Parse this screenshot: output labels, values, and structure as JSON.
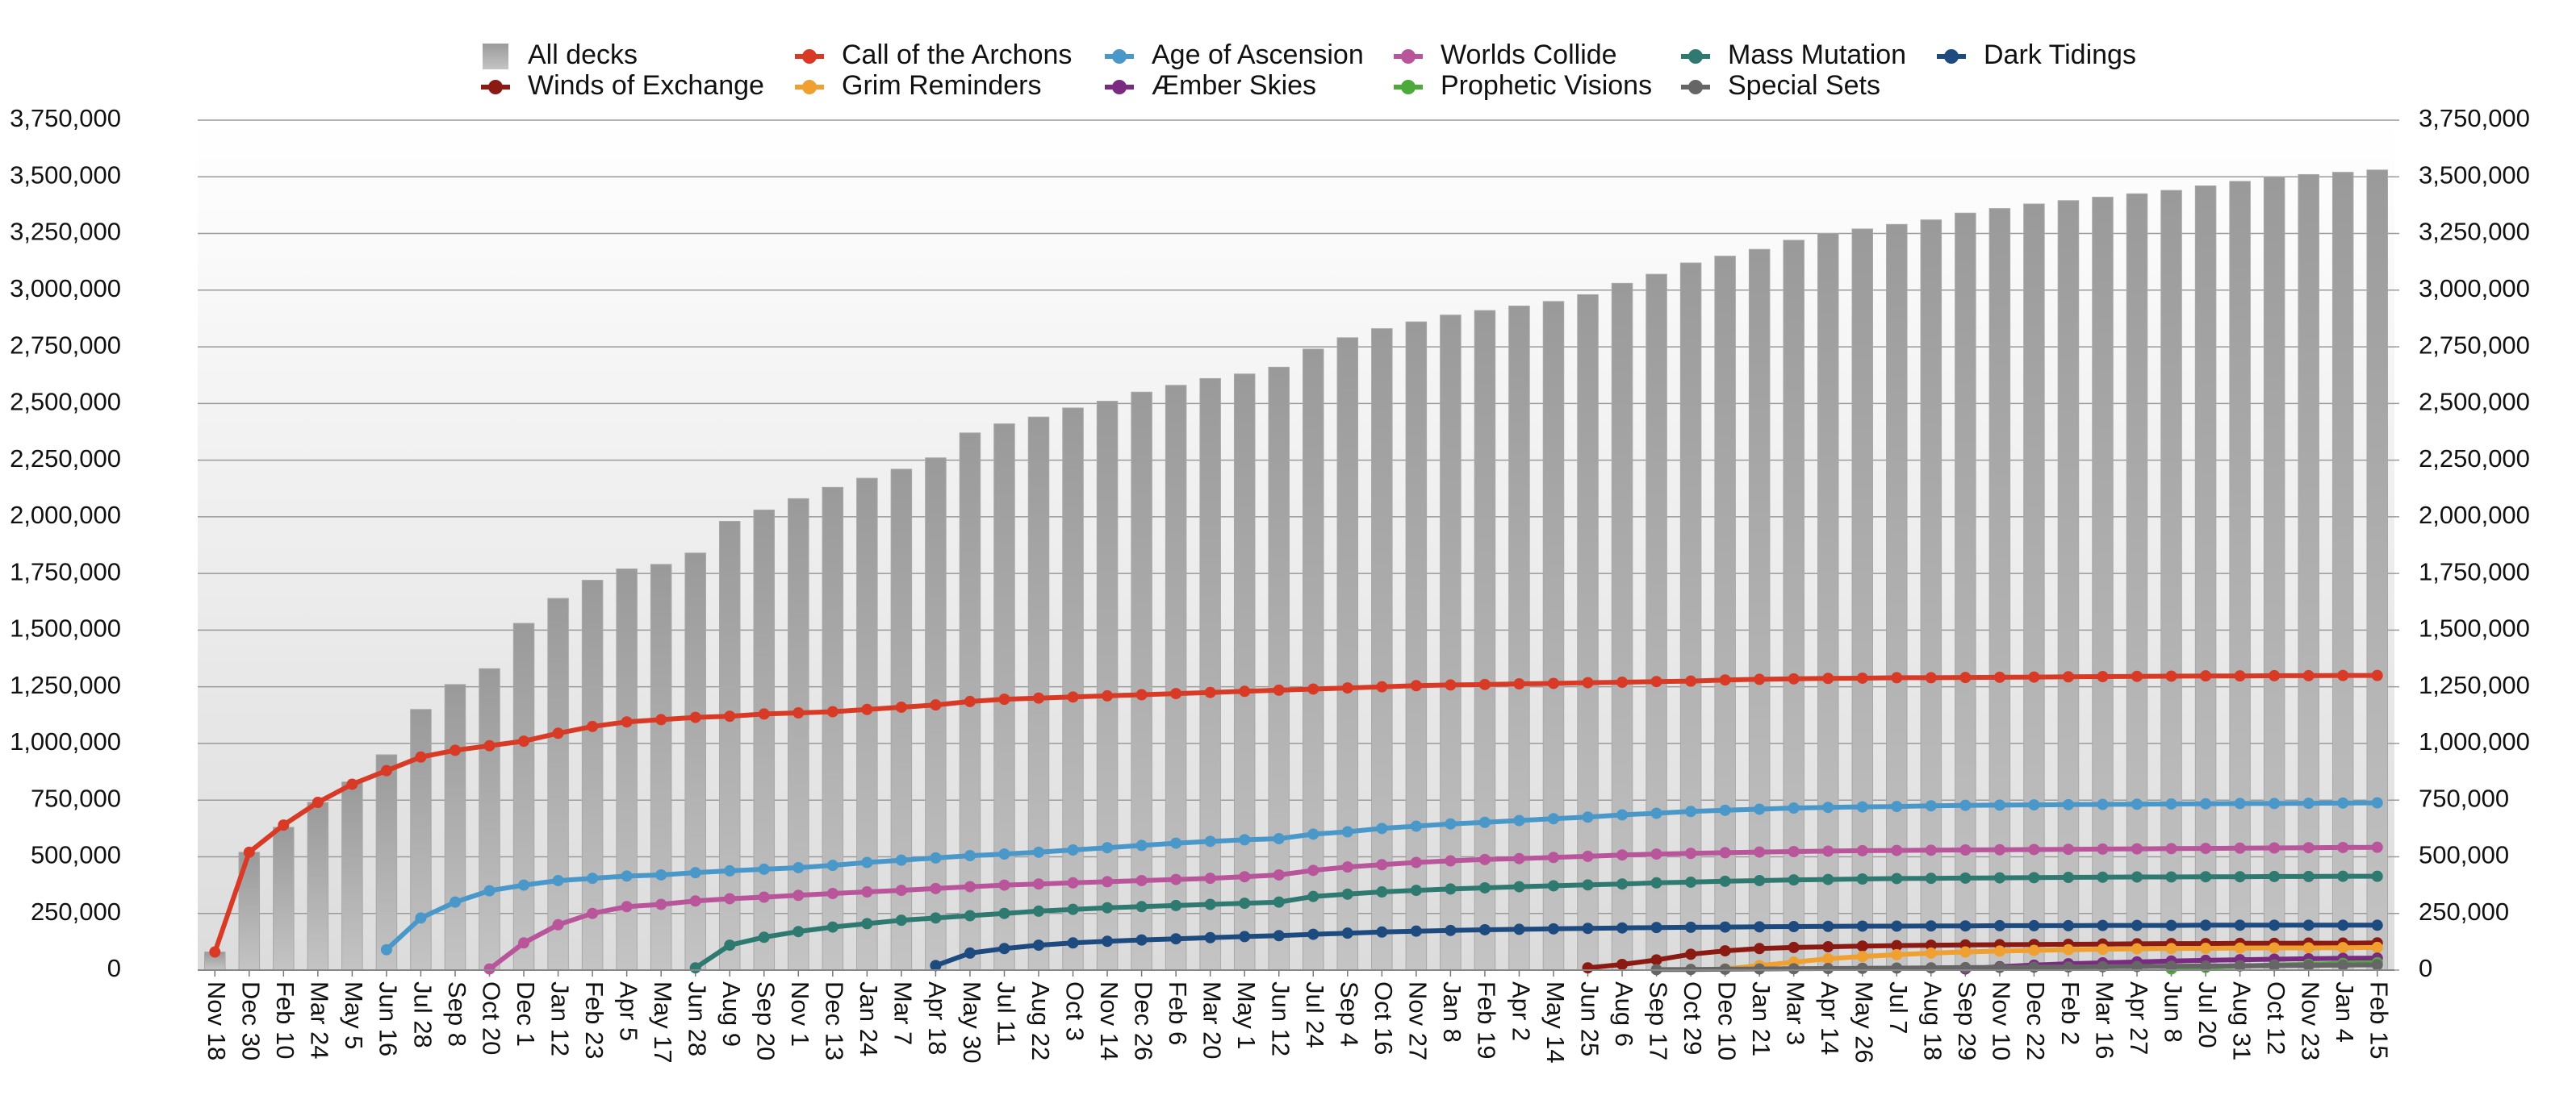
{
  "chart_data": {
    "type": "bar",
    "legend": "top",
    "grid": true,
    "categories": [
      "Nov 18",
      "Dec 30",
      "Feb 10",
      "Mar 24",
      "May 5",
      "Jun 16",
      "Jul 28",
      "Sep 8",
      "Oct 20",
      "Dec 1",
      "Jan 12",
      "Feb 23",
      "Apr 5",
      "May 17",
      "Jun 28",
      "Aug 9",
      "Sep 20",
      "Nov 1",
      "Dec 13",
      "Jan 24",
      "Mar 7",
      "Apr 18",
      "May 30",
      "Jul 11",
      "Aug 22",
      "Oct 3",
      "Nov 14",
      "Dec 26",
      "Feb 6",
      "Mar 20",
      "May 1",
      "Jun 12",
      "Jul 24",
      "Sep 4",
      "Oct 16",
      "Nov 27",
      "Jan 8",
      "Feb 19",
      "Apr 2",
      "May 14",
      "Jun 25",
      "Aug 6",
      "Sep 17",
      "Oct 29",
      "Dec 10",
      "Jan 21",
      "Mar 3",
      "Apr 14",
      "May 26",
      "Jul 7",
      "Aug 18",
      "Sep 29",
      "Nov 10",
      "Dec 22",
      "Feb 2",
      "Mar 16",
      "Apr 27",
      "Jun 8",
      "Jul 20",
      "Aug 31",
      "Oct 12",
      "Nov 23",
      "Jan 4",
      "Feb 15"
    ],
    "ylim": [
      0,
      3750000
    ],
    "yticks": [
      {
        "value": 0,
        "label": "0"
      },
      {
        "value": 250000,
        "label": "250,000"
      },
      {
        "value": 500000,
        "label": "500,000"
      },
      {
        "value": 750000,
        "label": "750,000"
      },
      {
        "value": 1000000,
        "label": "1,000,000"
      },
      {
        "value": 1250000,
        "label": "1,250,000"
      },
      {
        "value": 1500000,
        "label": "1,500,000"
      },
      {
        "value": 1750000,
        "label": "1,750,000"
      },
      {
        "value": 2000000,
        "label": "2,000,000"
      },
      {
        "value": 2250000,
        "label": "2,250,000"
      },
      {
        "value": 2500000,
        "label": "2,500,000"
      },
      {
        "value": 2750000,
        "label": "2,750,000"
      },
      {
        "value": 3000000,
        "label": "3,000,000"
      },
      {
        "value": 3250000,
        "label": "3,250,000"
      },
      {
        "value": 3500000,
        "label": "3,500,000"
      },
      {
        "value": 3750000,
        "label": "3,750,000"
      }
    ],
    "y2lim": [
      0,
      3750000
    ],
    "y2ticks": [
      {
        "value": 0,
        "label": "0"
      },
      {
        "value": 250000,
        "label": "250,000"
      },
      {
        "value": 500000,
        "label": "500,000"
      },
      {
        "value": 750000,
        "label": "750,000"
      },
      {
        "value": 1000000,
        "label": "1,000,000"
      },
      {
        "value": 1250000,
        "label": "1,250,000"
      },
      {
        "value": 1500000,
        "label": "1,500,000"
      },
      {
        "value": 1750000,
        "label": "1,750,000"
      },
      {
        "value": 2000000,
        "label": "2,000,000"
      },
      {
        "value": 2250000,
        "label": "2,250,000"
      },
      {
        "value": 2500000,
        "label": "2,500,000"
      },
      {
        "value": 2750000,
        "label": "2,750,000"
      },
      {
        "value": 3000000,
        "label": "3,000,000"
      },
      {
        "value": 3250000,
        "label": "3,250,000"
      },
      {
        "value": 3500000,
        "label": "3,500,000"
      },
      {
        "value": 3750000,
        "label": "3,750,000"
      }
    ],
    "series": [
      {
        "name": "All decks",
        "type": "bar",
        "color": "#a8a8a8",
        "values": [
          80000,
          520000,
          630000,
          740000,
          830000,
          950000,
          1150000,
          1260000,
          1330000,
          1530000,
          1640000,
          1720000,
          1770000,
          1790000,
          1840000,
          1980000,
          2030000,
          2080000,
          2130000,
          2170000,
          2210000,
          2260000,
          2370000,
          2410000,
          2440000,
          2480000,
          2510000,
          2550000,
          2580000,
          2610000,
          2630000,
          2660000,
          2740000,
          2790000,
          2830000,
          2860000,
          2890000,
          2910000,
          2930000,
          2950000,
          2980000,
          3030000,
          3070000,
          3120000,
          3150000,
          3180000,
          3220000,
          3250000,
          3270000,
          3290000,
          3310000,
          3340000,
          3360000,
          3380000,
          3395000,
          3410000,
          3425000,
          3440000,
          3460000,
          3480000,
          3500000,
          3510000,
          3520000,
          3530000
        ]
      },
      {
        "name": "Call of the Archons",
        "type": "line",
        "color": "#d93a26",
        "values": [
          80000,
          520000,
          640000,
          740000,
          820000,
          880000,
          940000,
          970000,
          990000,
          1010000,
          1045000,
          1075000,
          1095000,
          1105000,
          1115000,
          1120000,
          1130000,
          1135000,
          1140000,
          1150000,
          1160000,
          1170000,
          1185000,
          1195000,
          1200000,
          1205000,
          1210000,
          1215000,
          1220000,
          1225000,
          1230000,
          1235000,
          1240000,
          1245000,
          1250000,
          1255000,
          1258000,
          1260000,
          1263000,
          1265000,
          1268000,
          1270000,
          1273000,
          1275000,
          1280000,
          1283000,
          1285000,
          1287000,
          1288000,
          1290000,
          1290000,
          1291000,
          1292000,
          1293000,
          1294000,
          1295000,
          1296000,
          1297000,
          1298000,
          1298000,
          1299000,
          1299000,
          1300000,
          1300000
        ]
      },
      {
        "name": "Age of Ascension",
        "type": "line",
        "color": "#4a98c9",
        "values": [
          null,
          null,
          null,
          null,
          null,
          90000,
          230000,
          300000,
          350000,
          375000,
          395000,
          405000,
          415000,
          420000,
          430000,
          438000,
          445000,
          452000,
          462000,
          475000,
          485000,
          495000,
          505000,
          512000,
          520000,
          530000,
          540000,
          550000,
          560000,
          568000,
          575000,
          580000,
          600000,
          610000,
          625000,
          635000,
          645000,
          652000,
          660000,
          668000,
          675000,
          685000,
          692000,
          700000,
          705000,
          710000,
          715000,
          718000,
          720000,
          722000,
          725000,
          727000,
          728000,
          729000,
          730000,
          731000,
          732000,
          733000,
          734000,
          735000,
          735000,
          736000,
          737000,
          738000
        ]
      },
      {
        "name": "Worlds Collide",
        "type": "line",
        "color": "#b9559a",
        "values": [
          null,
          null,
          null,
          null,
          null,
          null,
          null,
          null,
          5000,
          120000,
          200000,
          250000,
          280000,
          290000,
          305000,
          315000,
          322000,
          330000,
          338000,
          345000,
          352000,
          360000,
          368000,
          375000,
          380000,
          385000,
          390000,
          395000,
          400000,
          405000,
          412000,
          420000,
          440000,
          455000,
          465000,
          475000,
          482000,
          488000,
          492000,
          497000,
          502000,
          508000,
          512000,
          515000,
          518000,
          521000,
          523000,
          525000,
          527000,
          528000,
          529000,
          530000,
          531000,
          532000,
          533000,
          534000,
          535000,
          536000,
          537000,
          538000,
          539000,
          540000,
          541000,
          542000
        ]
      },
      {
        "name": "Mass Mutation",
        "type": "line",
        "color": "#2f7a70",
        "values": [
          null,
          null,
          null,
          null,
          null,
          null,
          null,
          null,
          null,
          null,
          null,
          null,
          null,
          null,
          10000,
          110000,
          145000,
          170000,
          190000,
          205000,
          220000,
          230000,
          240000,
          250000,
          260000,
          268000,
          275000,
          280000,
          285000,
          290000,
          295000,
          300000,
          325000,
          335000,
          345000,
          352000,
          358000,
          363000,
          368000,
          372000,
          376000,
          380000,
          385000,
          388000,
          392000,
          395000,
          398000,
          400000,
          402000,
          404000,
          405000,
          406000,
          407000,
          408000,
          409000,
          410000,
          411000,
          411000,
          412000,
          412000,
          413000,
          413000,
          414000,
          414000
        ]
      },
      {
        "name": "Dark Tidings",
        "type": "line",
        "color": "#1d4a7f",
        "values": [
          null,
          null,
          null,
          null,
          null,
          null,
          null,
          null,
          null,
          null,
          null,
          null,
          null,
          null,
          null,
          null,
          null,
          null,
          null,
          null,
          null,
          20000,
          75000,
          95000,
          110000,
          120000,
          127000,
          133000,
          138000,
          143000,
          148000,
          152000,
          158000,
          163000,
          168000,
          172000,
          175000,
          178000,
          180000,
          182000,
          184000,
          186000,
          188000,
          189000,
          190000,
          191000,
          192000,
          193000,
          194000,
          194000,
          195000,
          195000,
          196000,
          196000,
          196000,
          197000,
          197000,
          197000,
          198000,
          198000,
          198000,
          198000,
          198000,
          198000
        ]
      },
      {
        "name": "Winds of Exchange",
        "type": "line",
        "color": "#8a1a12",
        "values": [
          null,
          null,
          null,
          null,
          null,
          null,
          null,
          null,
          null,
          null,
          null,
          null,
          null,
          null,
          null,
          null,
          null,
          null,
          null,
          null,
          null,
          null,
          null,
          null,
          null,
          null,
          null,
          null,
          null,
          null,
          null,
          null,
          null,
          null,
          null,
          null,
          null,
          null,
          null,
          null,
          10000,
          25000,
          45000,
          70000,
          85000,
          95000,
          100000,
          103000,
          106000,
          108000,
          110000,
          111000,
          112000,
          113000,
          114000,
          115000,
          116000,
          117000,
          117000,
          118000,
          118000,
          119000,
          119000,
          120000
        ]
      },
      {
        "name": "Grim Reminders",
        "type": "line",
        "color": "#f0a030",
        "values": [
          null,
          null,
          null,
          null,
          null,
          null,
          null,
          null,
          null,
          null,
          null,
          null,
          null,
          null,
          null,
          null,
          null,
          null,
          null,
          null,
          null,
          null,
          null,
          null,
          null,
          null,
          null,
          null,
          null,
          null,
          null,
          null,
          null,
          null,
          null,
          null,
          null,
          null,
          null,
          null,
          null,
          null,
          null,
          null,
          5000,
          20000,
          35000,
          50000,
          60000,
          68000,
          75000,
          80000,
          84000,
          87000,
          90000,
          92000,
          94000,
          95000,
          96000,
          97000,
          98000,
          98000,
          99000,
          100000
        ]
      },
      {
        "name": "Æmber Skies",
        "type": "line",
        "color": "#7a2a80",
        "values": [
          null,
          null,
          null,
          null,
          null,
          null,
          null,
          null,
          null,
          null,
          null,
          null,
          null,
          null,
          null,
          null,
          null,
          null,
          null,
          null,
          null,
          null,
          null,
          null,
          null,
          null,
          null,
          null,
          null,
          null,
          null,
          null,
          null,
          null,
          null,
          null,
          null,
          null,
          null,
          null,
          null,
          null,
          null,
          null,
          null,
          null,
          null,
          null,
          null,
          null,
          null,
          5000,
          15000,
          22000,
          28000,
          32000,
          36000,
          40000,
          43000,
          46000,
          48000,
          50000,
          52000,
          53000
        ]
      },
      {
        "name": "Prophetic Visions",
        "type": "line",
        "color": "#4caa3a",
        "values": [
          null,
          null,
          null,
          null,
          null,
          null,
          null,
          null,
          null,
          null,
          null,
          null,
          null,
          null,
          null,
          null,
          null,
          null,
          null,
          null,
          null,
          null,
          null,
          null,
          null,
          null,
          null,
          null,
          null,
          null,
          null,
          null,
          null,
          null,
          null,
          null,
          null,
          null,
          null,
          null,
          null,
          null,
          null,
          null,
          null,
          null,
          null,
          null,
          null,
          null,
          null,
          null,
          null,
          null,
          null,
          null,
          null,
          5000,
          12000,
          18000,
          22000,
          26000,
          30000,
          33000
        ]
      },
      {
        "name": "Special Sets",
        "type": "line",
        "color": "#666666",
        "values": [
          null,
          null,
          null,
          null,
          null,
          null,
          null,
          null,
          null,
          null,
          null,
          null,
          null,
          null,
          null,
          null,
          null,
          null,
          null,
          null,
          null,
          null,
          null,
          null,
          null,
          null,
          null,
          null,
          null,
          null,
          null,
          null,
          null,
          null,
          null,
          null,
          null,
          null,
          null,
          null,
          null,
          null,
          2000,
          3000,
          4000,
          5000,
          6000,
          7000,
          8000,
          9000,
          10000,
          11000,
          12000,
          13000,
          14000,
          15000,
          16000,
          17000,
          18000,
          19000,
          20000,
          21000,
          22000,
          23000
        ]
      }
    ]
  }
}
